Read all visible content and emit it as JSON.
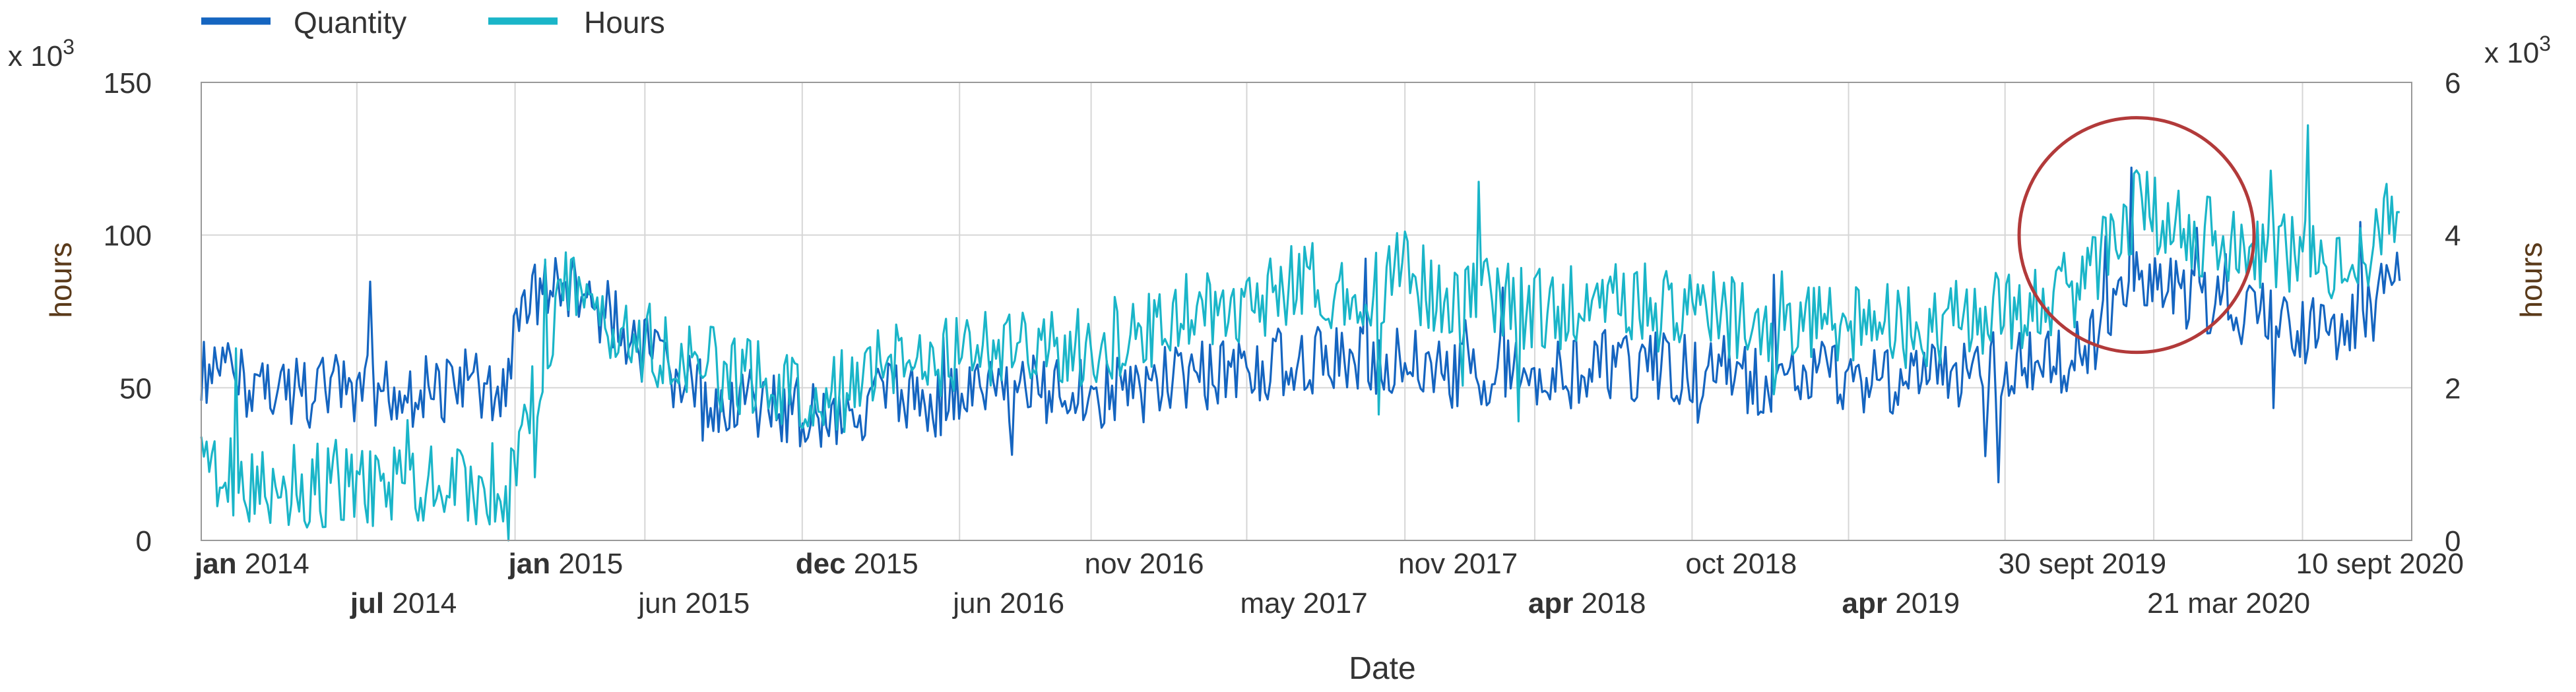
{
  "chart_data": {
    "type": "line",
    "title": "",
    "xlabel": "Date",
    "ylabel_left": "hours",
    "ylabel_right": "hours",
    "left_multiplier": "x 10",
    "left_multiplier_exp": "3",
    "right_multiplier": "x 10",
    "right_multiplier_exp": "3",
    "ylim_left": [
      0,
      150
    ],
    "ylim_right": [
      0,
      6
    ],
    "yticks_left": [
      0,
      50,
      100,
      150
    ],
    "yticks_right": [
      0,
      2,
      4,
      6
    ],
    "x_range": [
      "2014-01-01",
      "2021-01-15"
    ],
    "grid": true,
    "legend_position": "top-left",
    "legend": [
      {
        "name": "Quantity",
        "color": "#1565c0"
      },
      {
        "name": "Hours",
        "color": "#1ab5c8"
      }
    ],
    "xtick_labels": [
      {
        "date": "2014-01-01",
        "label": "jan  2014",
        "row": 1,
        "bold_prefix": "jan"
      },
      {
        "date": "2014-07-01",
        "label": "jul  2014",
        "row": 2,
        "bold_prefix": "jul"
      },
      {
        "date": "2015-01-01",
        "label": "jan  2015",
        "row": 1,
        "bold_prefix": "jan"
      },
      {
        "date": "2015-06-01",
        "label": "jun 2015",
        "row": 2,
        "bold_prefix": ""
      },
      {
        "date": "2015-12-01",
        "label": "dec 2015",
        "row": 1,
        "bold_prefix": "dec"
      },
      {
        "date": "2016-06-01",
        "label": "jun 2016",
        "row": 2,
        "bold_prefix": ""
      },
      {
        "date": "2016-11-01",
        "label": "nov 2016",
        "row": 1,
        "bold_prefix": ""
      },
      {
        "date": "2017-05-01",
        "label": "may 2017",
        "row": 2,
        "bold_prefix": ""
      },
      {
        "date": "2017-11-01",
        "label": "nov 2017",
        "row": 1,
        "bold_prefix": ""
      },
      {
        "date": "2018-04-01",
        "label": "apr  2018",
        "row": 2,
        "bold_prefix": "apr"
      },
      {
        "date": "2018-10-01",
        "label": "oct 2018",
        "row": 1,
        "bold_prefix": ""
      },
      {
        "date": "2019-04-01",
        "label": "apr 2019",
        "row": 2,
        "bold_prefix": "apr"
      },
      {
        "date": "2019-09-30",
        "label": "30 sept 2019",
        "row": 1,
        "bold_prefix": ""
      },
      {
        "date": "2020-03-21",
        "label": "21 mar 2020",
        "row": 2,
        "bold_prefix": ""
      },
      {
        "date": "2020-09-10",
        "label": "10 sept 2020",
        "row": 1,
        "bold_prefix": ""
      }
    ],
    "annotations": [
      {
        "type": "circle",
        "date": "2020-03-01",
        "value": 100,
        "color": "#b23a3a"
      }
    ],
    "series": [
      {
        "name": "Quantity",
        "axis": "left",
        "color": "#1565c0",
        "x": [
          "2014-01-01",
          "2014-03-01",
          "2014-05-01",
          "2014-07-01",
          "2014-09-01",
          "2014-11-01",
          "2014-12-15",
          "2015-01-15",
          "2015-03-01",
          "2015-05-01",
          "2015-07-01",
          "2015-09-01",
          "2015-11-01",
          "2016-01-01",
          "2016-03-01",
          "2016-05-01",
          "2016-07-01",
          "2016-09-01",
          "2016-11-01",
          "2017-01-01",
          "2017-03-01",
          "2017-05-01",
          "2017-07-01",
          "2017-09-01",
          "2017-11-01",
          "2018-01-01",
          "2018-03-01",
          "2018-05-01",
          "2018-07-01",
          "2018-09-01",
          "2018-11-01",
          "2019-01-01",
          "2019-03-01",
          "2019-05-01",
          "2019-07-01",
          "2019-09-01",
          "2019-11-01",
          "2020-01-01",
          "2020-03-01",
          "2020-05-01",
          "2020-07-01",
          "2020-09-01",
          "2020-11-01",
          "2021-01-01"
        ],
        "values": [
          55,
          52,
          48,
          50,
          47,
          52,
          45,
          80,
          82,
          72,
          52,
          46,
          44,
          40,
          47,
          44,
          48,
          50,
          48,
          50,
          54,
          55,
          60,
          58,
          60,
          54,
          55,
          54,
          58,
          56,
          56,
          50,
          54,
          52,
          52,
          56,
          58,
          62,
          90,
          78,
          75,
          70,
          68,
          85
        ]
      },
      {
        "name": "Hours",
        "axis": "right",
        "color": "#1ab5c8",
        "x": [
          "2014-01-01",
          "2014-03-01",
          "2014-05-01",
          "2014-07-01",
          "2014-09-01",
          "2014-11-01",
          "2014-12-15",
          "2015-01-15",
          "2015-03-01",
          "2015-05-01",
          "2015-07-01",
          "2015-09-01",
          "2015-11-01",
          "2016-01-01",
          "2016-03-01",
          "2016-05-01",
          "2016-07-01",
          "2016-09-01",
          "2016-11-01",
          "2017-01-01",
          "2017-03-01",
          "2017-05-01",
          "2017-07-01",
          "2017-09-01",
          "2017-11-01",
          "2018-01-01",
          "2018-03-01",
          "2018-05-01",
          "2018-07-01",
          "2018-09-01",
          "2018-11-01",
          "2019-01-01",
          "2019-03-01",
          "2019-05-01",
          "2019-07-01",
          "2019-09-01",
          "2019-11-01",
          "2020-01-01",
          "2020-03-01",
          "2020-05-01",
          "2020-07-01",
          "2020-09-01",
          "2020-11-01",
          "2021-01-01"
        ],
        "values": [
          0.8,
          0.78,
          0.72,
          0.75,
          0.7,
          0.8,
          0.7,
          1.6,
          3.4,
          2.8,
          2.4,
          2.2,
          2.1,
          1.8,
          2.4,
          2.3,
          2.5,
          2.6,
          2.5,
          2.8,
          3.0,
          3.1,
          3.4,
          3.2,
          3.5,
          3.1,
          3.1,
          3.0,
          3.2,
          3.0,
          3.0,
          2.6,
          2.9,
          2.8,
          2.8,
          2.9,
          3.1,
          3.4,
          4.4,
          4.0,
          3.9,
          3.7,
          3.6,
          4.3
        ]
      }
    ]
  }
}
